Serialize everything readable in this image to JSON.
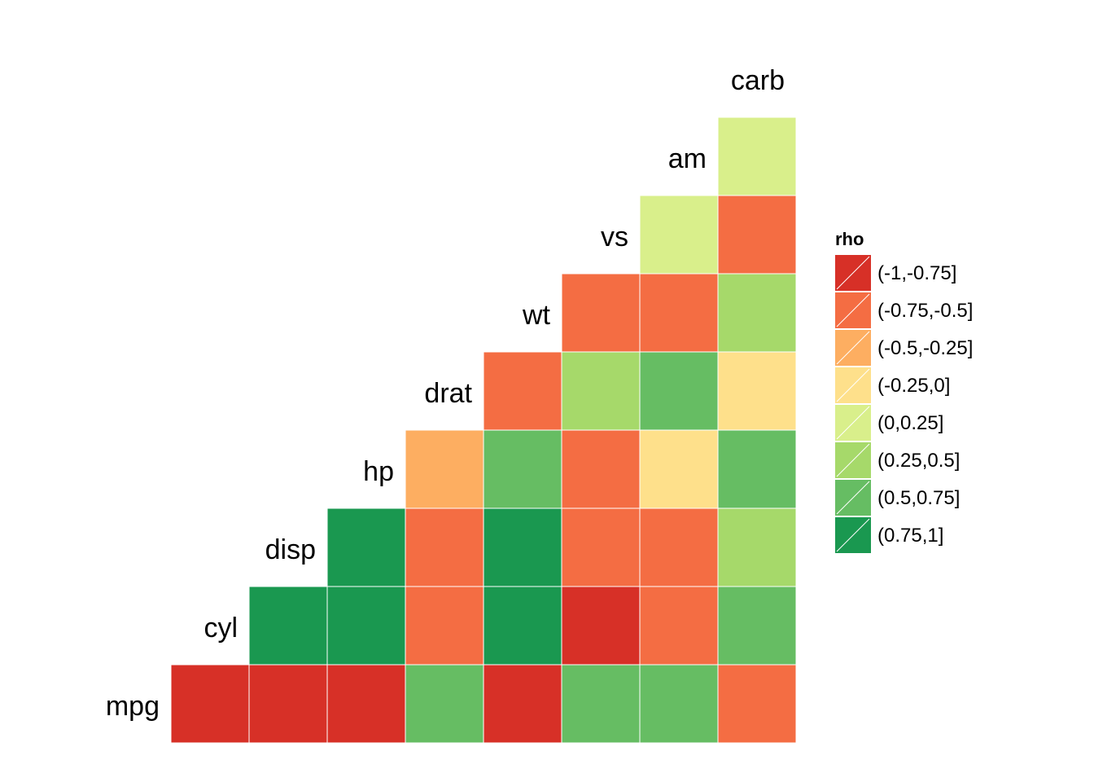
{
  "chart_data": {
    "type": "heatmap",
    "variables": [
      "mpg",
      "cyl",
      "disp",
      "hp",
      "drat",
      "wt",
      "vs",
      "am",
      "carb"
    ],
    "legend": {
      "title": "rho",
      "bins": [
        {
          "label": "(-1,-0.75]",
          "color": "#D73027"
        },
        {
          "label": "(-0.75,-0.5]",
          "color": "#F46D43"
        },
        {
          "label": "(-0.5,-0.25]",
          "color": "#FDAE61"
        },
        {
          "label": "(-0.25,0]",
          "color": "#FEE08B"
        },
        {
          "label": "(0,0.25]",
          "color": "#D9EF8B"
        },
        {
          "label": "(0.25,0.5]",
          "color": "#A6D96A"
        },
        {
          "label": "(0.5,0.75]",
          "color": "#66BD63"
        },
        {
          "label": "(0.75,1]",
          "color": "#1A9850"
        }
      ]
    },
    "cells": [
      {
        "row": "mpg",
        "col": "cyl",
        "bin": 0
      },
      {
        "row": "mpg",
        "col": "disp",
        "bin": 0
      },
      {
        "row": "mpg",
        "col": "hp",
        "bin": 0
      },
      {
        "row": "mpg",
        "col": "drat",
        "bin": 6
      },
      {
        "row": "mpg",
        "col": "wt",
        "bin": 0
      },
      {
        "row": "mpg",
        "col": "vs",
        "bin": 6
      },
      {
        "row": "mpg",
        "col": "am",
        "bin": 6
      },
      {
        "row": "mpg",
        "col": "carb",
        "bin": 1
      },
      {
        "row": "cyl",
        "col": "disp",
        "bin": 7
      },
      {
        "row": "cyl",
        "col": "hp",
        "bin": 7
      },
      {
        "row": "cyl",
        "col": "drat",
        "bin": 1
      },
      {
        "row": "cyl",
        "col": "wt",
        "bin": 7
      },
      {
        "row": "cyl",
        "col": "vs",
        "bin": 0
      },
      {
        "row": "cyl",
        "col": "am",
        "bin": 1
      },
      {
        "row": "cyl",
        "col": "carb",
        "bin": 6
      },
      {
        "row": "disp",
        "col": "hp",
        "bin": 7
      },
      {
        "row": "disp",
        "col": "drat",
        "bin": 1
      },
      {
        "row": "disp",
        "col": "wt",
        "bin": 7
      },
      {
        "row": "disp",
        "col": "vs",
        "bin": 1
      },
      {
        "row": "disp",
        "col": "am",
        "bin": 1
      },
      {
        "row": "disp",
        "col": "carb",
        "bin": 5
      },
      {
        "row": "hp",
        "col": "drat",
        "bin": 2
      },
      {
        "row": "hp",
        "col": "wt",
        "bin": 6
      },
      {
        "row": "hp",
        "col": "vs",
        "bin": 1
      },
      {
        "row": "hp",
        "col": "am",
        "bin": 3
      },
      {
        "row": "hp",
        "col": "carb",
        "bin": 6
      },
      {
        "row": "drat",
        "col": "wt",
        "bin": 1
      },
      {
        "row": "drat",
        "col": "vs",
        "bin": 5
      },
      {
        "row": "drat",
        "col": "am",
        "bin": 6
      },
      {
        "row": "drat",
        "col": "carb",
        "bin": 3
      },
      {
        "row": "wt",
        "col": "vs",
        "bin": 1
      },
      {
        "row": "wt",
        "col": "am",
        "bin": 1
      },
      {
        "row": "wt",
        "col": "carb",
        "bin": 5
      },
      {
        "row": "vs",
        "col": "am",
        "bin": 4
      },
      {
        "row": "vs",
        "col": "carb",
        "bin": 1
      },
      {
        "row": "am",
        "col": "carb",
        "bin": 4
      }
    ]
  }
}
